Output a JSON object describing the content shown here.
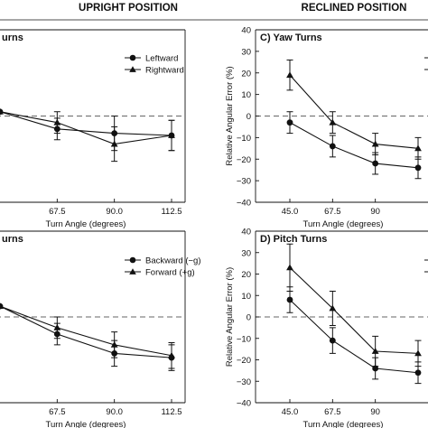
{
  "headers": {
    "left": "UPRIGHT POSITION",
    "right": "RECLINED POSITION"
  },
  "chart_data": [
    {
      "type": "line",
      "title": "urns",
      "xlabel": "Turn Angle (degrees)",
      "ylabel": "",
      "x_ticks": [
        "67.5",
        "90.0",
        "112.5"
      ],
      "y_ticks": [],
      "ylim": [
        -40,
        40
      ],
      "legend": "top-right",
      "series": [
        {
          "name": "Leftward",
          "marker": "circle",
          "x": [
            45.0,
            67.5,
            90.0,
            112.5
          ],
          "y": [
            2,
            -6,
            -8,
            -9
          ],
          "err": [
            null,
            5,
            8,
            7
          ]
        },
        {
          "name": "Rightward",
          "marker": "triangle",
          "x": [
            45.0,
            67.5,
            90.0,
            112.5
          ],
          "y": [
            2,
            -3,
            -13,
            -9
          ],
          "err": [
            null,
            5,
            8,
            7
          ]
        }
      ]
    },
    {
      "type": "line",
      "title": "C) Yaw Turns",
      "xlabel": "Turn Angle (degrees)",
      "ylabel": "Relative Angular Error (%)",
      "x_ticks": [
        "45.0",
        "67.5",
        "90"
      ],
      "y_ticks": [
        "40",
        "30",
        "20",
        "10",
        "0",
        "−10",
        "−20",
        "−30",
        "−40"
      ],
      "ylim": [
        -40,
        40
      ],
      "legend": "top-right",
      "series": [
        {
          "name": "",
          "marker": "circle",
          "x": [
            45.0,
            67.5,
            90.0,
            112.5
          ],
          "y": [
            -3,
            -14,
            -22,
            -24
          ],
          "err": [
            5,
            5,
            5,
            5
          ]
        },
        {
          "name": "",
          "marker": "triangle",
          "x": [
            45.0,
            67.5,
            90.0,
            112.5
          ],
          "y": [
            19,
            -3,
            -13,
            -15
          ],
          "err": [
            7,
            5,
            5,
            5
          ]
        }
      ]
    },
    {
      "type": "line",
      "title": "urns",
      "xlabel": "Turn Angle (degrees)",
      "ylabel": "",
      "x_ticks": [
        "67.5",
        "90.0",
        "112.5"
      ],
      "y_ticks": [],
      "ylim": [
        -40,
        40
      ],
      "legend": "top-right",
      "series": [
        {
          "name": "Backward (−g)",
          "marker": "circle",
          "x": [
            45.0,
            67.5,
            90.0,
            112.5
          ],
          "y": [
            5,
            -8,
            -17,
            -19
          ],
          "err": [
            null,
            5,
            6,
            6
          ]
        },
        {
          "name": "Forward (+g)",
          "marker": "triangle",
          "x": [
            45.0,
            67.5,
            90.0,
            112.5
          ],
          "y": [
            5,
            -5,
            -13,
            -18
          ],
          "err": [
            null,
            5,
            6,
            6
          ]
        }
      ]
    },
    {
      "type": "line",
      "title": "D) Pitch Turns",
      "xlabel": "Turn Angle (degrees)",
      "ylabel": "Relative Angular Error (%)",
      "x_ticks": [
        "45.0",
        "67.5",
        "90"
      ],
      "y_ticks": [
        "40",
        "30",
        "20",
        "10",
        "0",
        "−10",
        "−20",
        "−30",
        "−40"
      ],
      "ylim": [
        -40,
        40
      ],
      "legend": "top-right",
      "series": [
        {
          "name": "",
          "marker": "circle",
          "x": [
            45.0,
            67.5,
            90.0,
            112.5
          ],
          "y": [
            8,
            -11,
            -24,
            -26
          ],
          "err": [
            6,
            6,
            5,
            5
          ]
        },
        {
          "name": "",
          "marker": "triangle",
          "x": [
            45.0,
            67.5,
            90.0,
            112.5
          ],
          "y": [
            23,
            4,
            -16,
            -17
          ],
          "err": [
            11,
            8,
            7,
            6
          ]
        }
      ]
    }
  ]
}
